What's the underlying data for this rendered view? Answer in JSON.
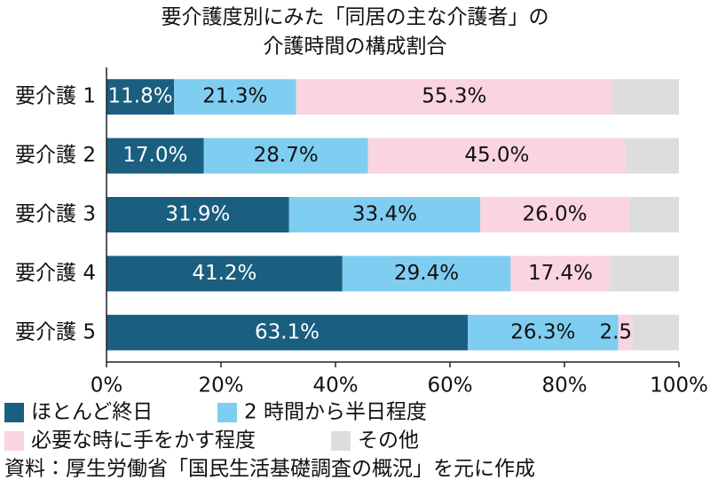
{
  "chart_data": {
    "type": "stacked-barh",
    "title": [
      "要介護度別にみた「同居の主な介護者」の",
      "介護時間の構成割合"
    ],
    "categories": [
      "要介護 1",
      "要介護 2",
      "要介護 3",
      "要介護 4",
      "要介護 5"
    ],
    "series": [
      {
        "name": "ほとんど終日",
        "color": "#1a5e80",
        "values": [
          11.8,
          17.0,
          31.9,
          41.2,
          63.1
        ],
        "value_labels": [
          "11.8%",
          "17.0%",
          "31.9%",
          "41.2%",
          "63.1%"
        ]
      },
      {
        "name": "2 時間から半日程度",
        "color": "#7fcdf0",
        "values": [
          21.3,
          28.7,
          33.4,
          29.4,
          26.3
        ],
        "value_labels": [
          "21.3%",
          "28.7%",
          "33.4%",
          "29.4%",
          "26.3%"
        ]
      },
      {
        "name": "必要な時に手をかす程度",
        "color": "#fad4e0",
        "values": [
          55.3,
          45.0,
          26.0,
          17.4,
          2.5
        ],
        "value_labels": [
          "55.3%",
          "45.0%",
          "26.0%",
          "17.4%",
          "2.5%"
        ]
      },
      {
        "name": "その他",
        "color": "#dddddd",
        "values": [
          11.6,
          9.3,
          8.7,
          12.0,
          8.1
        ]
      }
    ],
    "xlim": [
      0,
      100
    ],
    "xticks": [
      {
        "value": 0,
        "label": "0%"
      },
      {
        "value": 20,
        "label": "20%"
      },
      {
        "value": 40,
        "label": "40%"
      },
      {
        "value": 60,
        "label": "60%"
      },
      {
        "value": 80,
        "label": "80%"
      },
      {
        "value": 100,
        "label": "100%"
      }
    ],
    "source": "資料：厚生労働省「国民生活基礎調査の概況」を元に作成"
  }
}
